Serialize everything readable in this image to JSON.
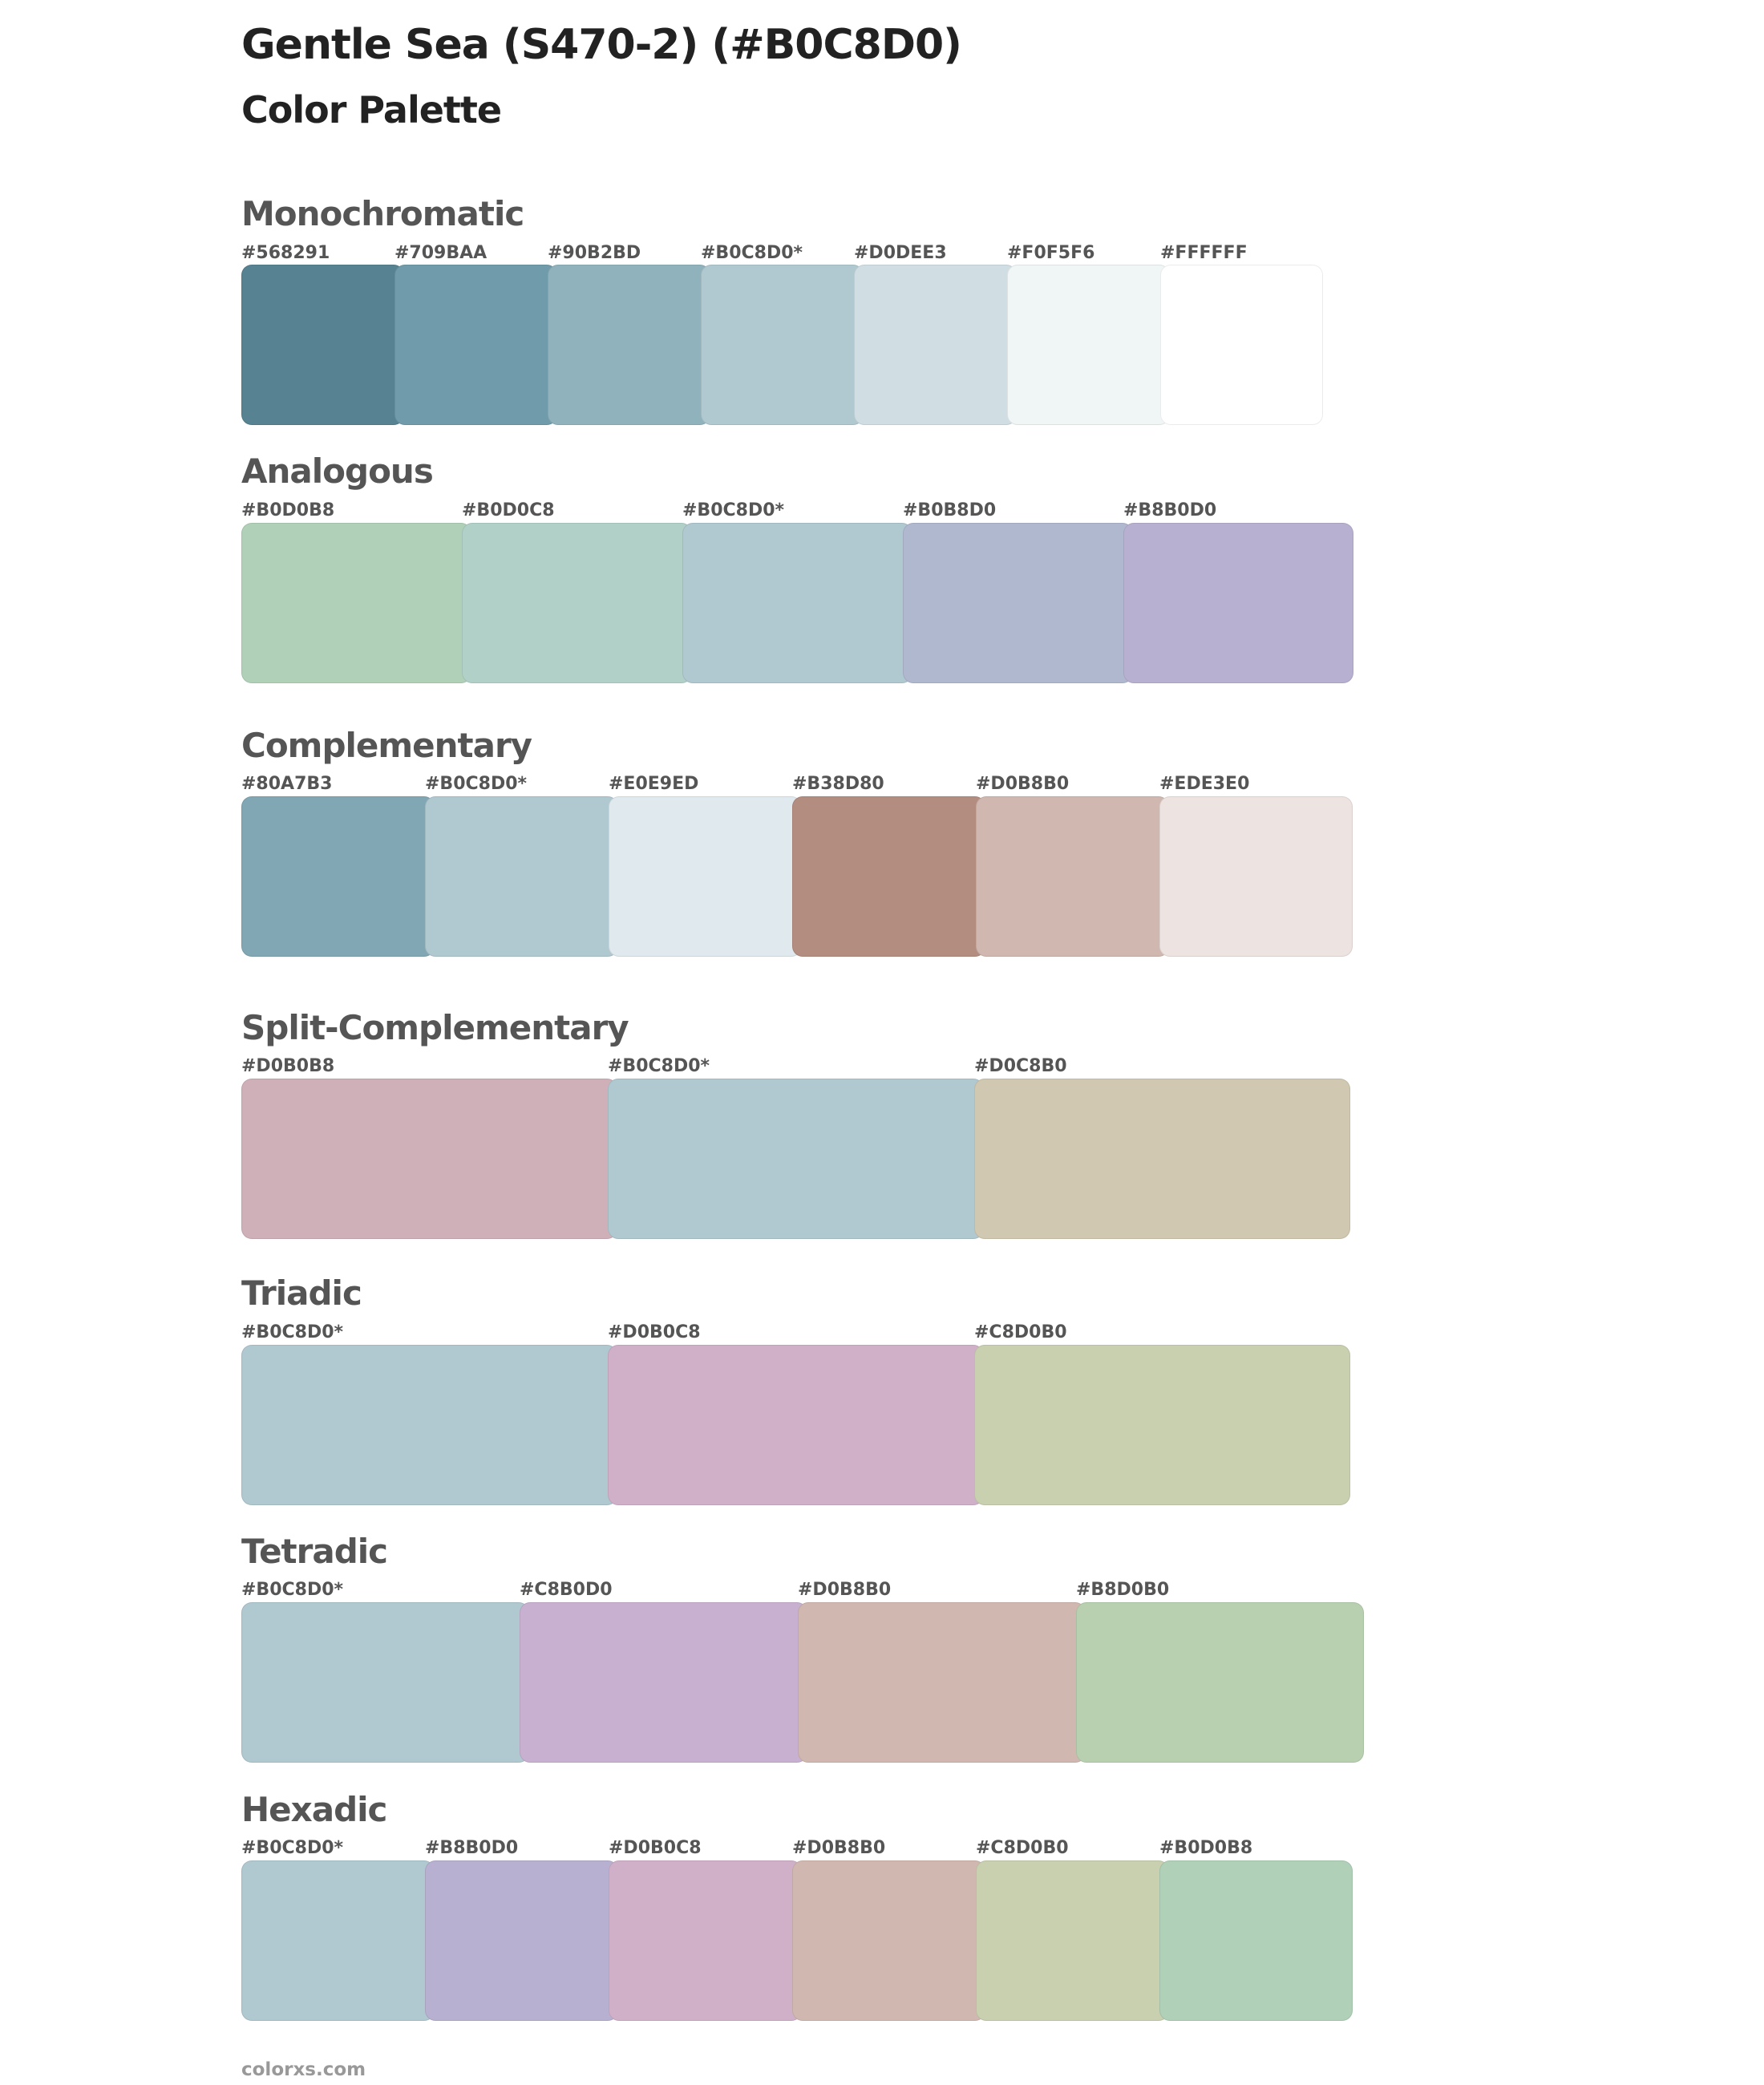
{
  "header": {
    "title": "Gentle Sea (S470-2) (#B0C8D0)",
    "subtitle": "Color Palette"
  },
  "sections": [
    {
      "name": "Monochromatic",
      "swatches": [
        {
          "label": "#568291",
          "color": "#568291"
        },
        {
          "label": "#709BAA",
          "color": "#709BAA"
        },
        {
          "label": "#90B2BD",
          "color": "#90B2BD"
        },
        {
          "label": "#B0C8D0*",
          "color": "#B0C8D0"
        },
        {
          "label": "#D0DEE3",
          "color": "#D0DEE3"
        },
        {
          "label": "#F0F5F6",
          "color": "#F0F5F6"
        },
        {
          "label": "#FFFFFF",
          "color": "#FFFFFF"
        }
      ]
    },
    {
      "name": "Analogous",
      "swatches": [
        {
          "label": "#B0D0B8",
          "color": "#B0D0B8"
        },
        {
          "label": "#B0D0C8",
          "color": "#B0D0C8"
        },
        {
          "label": "#B0C8D0*",
          "color": "#B0C8D0"
        },
        {
          "label": "#B0B8D0",
          "color": "#B0B8D0"
        },
        {
          "label": "#B8B0D0",
          "color": "#B8B0D0"
        }
      ]
    },
    {
      "name": "Complementary",
      "swatches": [
        {
          "label": "#80A7B3",
          "color": "#80A7B3"
        },
        {
          "label": "#B0C8D0*",
          "color": "#B0C8D0"
        },
        {
          "label": "#E0E9ED",
          "color": "#E0E9ED"
        },
        {
          "label": "#B38D80",
          "color": "#B38D80"
        },
        {
          "label": "#D0B8B0",
          "color": "#D0B8B0"
        },
        {
          "label": "#EDE3E0",
          "color": "#EDE3E0"
        }
      ]
    },
    {
      "name": "Split-Complementary",
      "swatches": [
        {
          "label": "#D0B0B8",
          "color": "#D0B0B8"
        },
        {
          "label": "#B0C8D0*",
          "color": "#B0C8D0"
        },
        {
          "label": "#D0C8B0",
          "color": "#D0C8B0"
        }
      ]
    },
    {
      "name": "Triadic",
      "swatches": [
        {
          "label": "#B0C8D0*",
          "color": "#B0C8D0"
        },
        {
          "label": "#D0B0C8",
          "color": "#D0B0C8"
        },
        {
          "label": "#C8D0B0",
          "color": "#C8D0B0"
        }
      ]
    },
    {
      "name": "Tetradic",
      "swatches": [
        {
          "label": "#B0C8D0*",
          "color": "#B0C8D0"
        },
        {
          "label": "#C8B0D0",
          "color": "#C8B0D0"
        },
        {
          "label": "#D0B8B0",
          "color": "#D0B8B0"
        },
        {
          "label": "#B8D0B0",
          "color": "#B8D0B0"
        }
      ]
    },
    {
      "name": "Hexadic",
      "swatches": [
        {
          "label": "#B0C8D0*",
          "color": "#B0C8D0"
        },
        {
          "label": "#B8B0D0",
          "color": "#B8B0D0"
        },
        {
          "label": "#D0B0C8",
          "color": "#D0B0C8"
        },
        {
          "label": "#D0B8B0",
          "color": "#D0B8B0"
        },
        {
          "label": "#C8D0B0",
          "color": "#C8D0B0"
        },
        {
          "label": "#B0D0B8",
          "color": "#B0D0B8"
        }
      ]
    }
  ],
  "footer": {
    "text": "colorxs.com"
  }
}
